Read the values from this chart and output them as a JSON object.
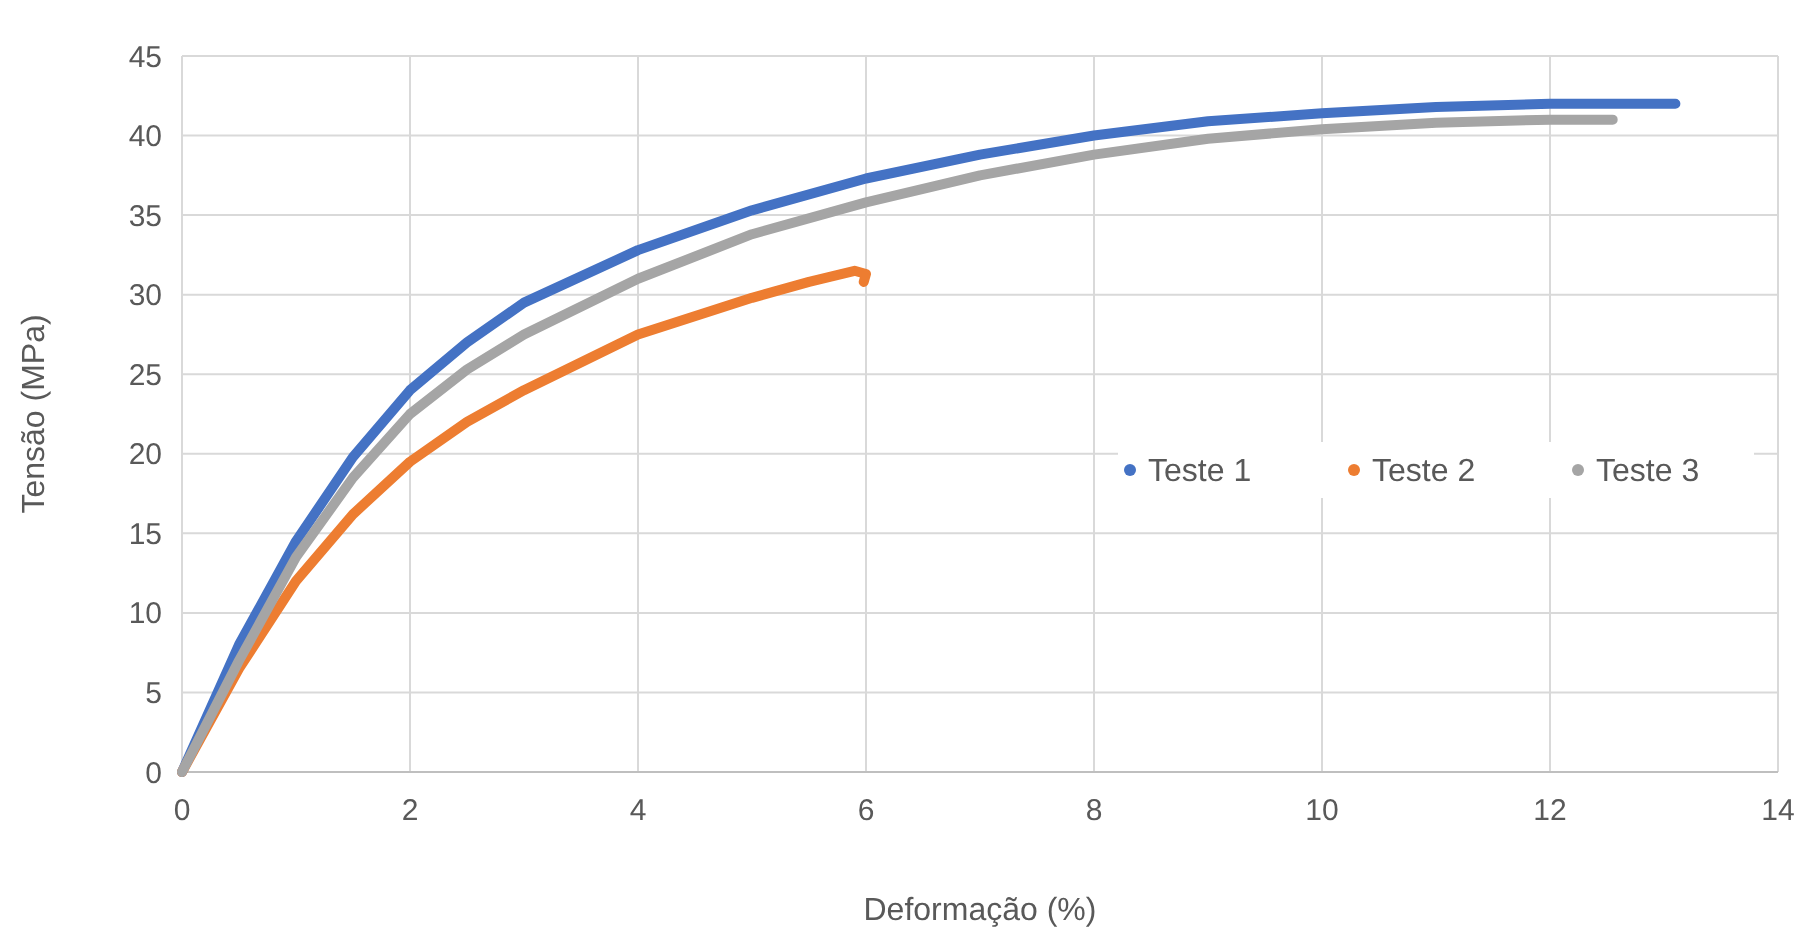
{
  "chart_data": {
    "type": "line",
    "xlabel": "Deformação (%)",
    "ylabel": "Tensão (MPa)",
    "xlim": [
      0,
      14
    ],
    "ylim": [
      0,
      45
    ],
    "xticks": [
      0,
      2,
      4,
      6,
      8,
      10,
      12,
      14
    ],
    "yticks": [
      0,
      5,
      10,
      15,
      20,
      25,
      30,
      35,
      40,
      45
    ],
    "grid": true,
    "legend": "right",
    "marker": "none",
    "line_style": "solid",
    "series": [
      {
        "name": "Teste 1",
        "color": "#4472c4",
        "x": [
          0,
          0.5,
          1,
          1.5,
          2,
          2.5,
          3,
          4,
          5,
          6,
          7,
          8,
          9,
          10,
          11,
          12,
          13.1
        ],
        "values": [
          0,
          8,
          14.5,
          19.8,
          24,
          27,
          29.5,
          32.8,
          35.3,
          37.3,
          38.8,
          40,
          40.9,
          41.4,
          41.8,
          42,
          42
        ]
      },
      {
        "name": "Teste 2",
        "color": "#ed7d31",
        "x": [
          0,
          0.5,
          1,
          1.5,
          2,
          2.5,
          3,
          4,
          5,
          5.5,
          5.9,
          6,
          5.98
        ],
        "values": [
          0,
          6.5,
          12,
          16.2,
          19.5,
          22,
          24,
          27.5,
          29.8,
          30.8,
          31.5,
          31.3,
          30.8
        ]
      },
      {
        "name": "Teste 3",
        "color": "#a5a5a5",
        "x": [
          0,
          0.5,
          1,
          1.5,
          2,
          2.5,
          3,
          4,
          5,
          6,
          7,
          8,
          9,
          10,
          11,
          12,
          12.55
        ],
        "values": [
          0,
          7,
          13.5,
          18.5,
          22.5,
          25.3,
          27.5,
          31,
          33.8,
          35.8,
          37.5,
          38.8,
          39.8,
          40.4,
          40.8,
          41,
          41
        ]
      }
    ]
  }
}
